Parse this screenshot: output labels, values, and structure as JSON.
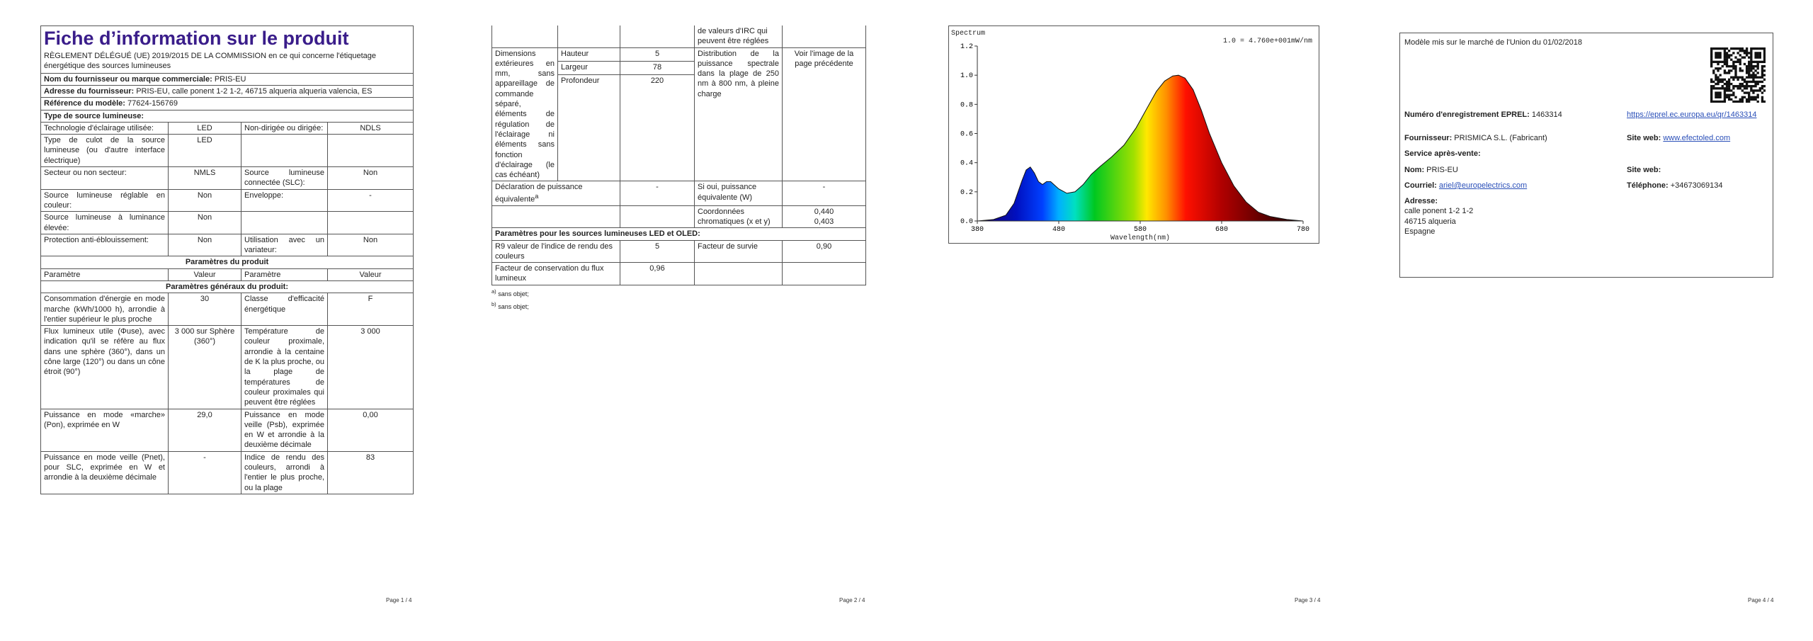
{
  "page1": {
    "title": "Fiche d’information sur le produit",
    "subtitle": "RÈGLEMENT DÉLÉGUÉ (UE) 2019/2015 DE LA COMMISSION en ce qui concerne l'étiquetage énergétique des sources lumineuses",
    "info": [
      [
        "Nom du fournisseur ou marque commerciale:",
        "PRIS-EU"
      ],
      [
        "Adresse du fournisseur:",
        "PRIS-EU, calle ponent 1-2 1-2, 46715 alqueria alqueria valencia, ES"
      ],
      [
        "Référence du modèle:",
        "77624-156769"
      ],
      [
        "Type de source lumineuse:"
      ]
    ],
    "rows": [
      [
        "Technologie d'éclairage utilisée:",
        "LED",
        "Non-dirigée ou dirigée:",
        "NDLS"
      ],
      [
        "Type de culot de la source lumineuse (ou d'autre interface électrique)",
        "LED",
        null,
        null
      ],
      [
        "Secteur ou non secteur:",
        "NMLS",
        "Source lumineuse connectée (SLC):",
        "Non"
      ],
      [
        "Source lumineuse réglable en couleur:",
        "Non",
        "Enveloppe:",
        "-"
      ],
      [
        "Source lumineuse à luminance élevée:",
        "Non",
        null,
        null
      ],
      [
        "Protection anti-éblouissement:",
        "Non",
        "Utilisation avec un variateur:",
        "Non"
      ],
      [
        "Paramètres du produit"
      ],
      [
        "Paramètre",
        "Valeur",
        "Paramètre",
        "Valeur"
      ],
      [
        "Paramètres généraux du produit:"
      ],
      [
        "Consommation d'énergie en mode marche (kWh/1000 h), arrondie à l'entier supérieur le plus proche",
        "30",
        "Classe d'efficacité énergétique",
        "F"
      ],
      [
        "Flux lumineux utile (Φuse), avec indication qu'il se réfère au flux dans une sphère (360°), dans un cône large (120°) ou dans un cône étroit (90°)",
        "3 000 sur Sphère (360°)",
        "Température de couleur proximale, arrondie à la centaine de K la plus proche, ou la plage de températures de couleur proximales qui peuvent être réglées",
        "3 000"
      ],
      [
        "Puissance en mode «marche» (Pon), exprimée en W",
        "29,0",
        "Puissance en mode veille (Psb), exprimée en W et arrondie à la deuxième décimale",
        "0,00"
      ],
      [
        "Puissance en mode veille (Pnet), pour SLC, exprimée en W et arrondie à la deuxième décimale",
        "-",
        "Indice de rendu des couleurs, arrondi à l'entier le plus proche, ou la plage",
        "83"
      ]
    ],
    "footer": "Page 1 / 4"
  },
  "page2": {
    "continuation": "de valeurs d'IRC qui peuvent être réglées",
    "dimensions_label": "Dimensions extérieures en mm, sans appareillage de commande séparé, éléments de régulation de l'éclairage ni éléments sans fonction d'éclairage (le cas échéant)",
    "dimensions": [
      [
        "Hauteur",
        "5"
      ],
      [
        "Largeur",
        "78"
      ],
      [
        "Profondeur",
        "220"
      ]
    ],
    "spectral_label": "Distribution de la puissance spectrale dans la plage de 250 nm à 800 nm, à pleine charge",
    "spectral_value": "Voir l'image de la page précédente",
    "equivalent_label": "Déclaration de puissance équivalente",
    "equivalent_note": "a",
    "equivalent_value": "-",
    "equivalent_power_label": "Si oui, puissance équivalente (W)",
    "equivalent_power_value": "-",
    "chromaticity_label": "Coordonnées chromatiques (x et y)",
    "chromaticity_values": [
      "0,440",
      "0,403"
    ],
    "led_heading": "Paramètres pour les sources lumineuses LED et OLED:",
    "r9_label": "R9 valeur de l'indice de rendu des couleurs",
    "r9_value": "5",
    "survival_label": "Facteur de survie",
    "survival_value": "0,90",
    "maintenance_label": "Facteur de conservation du flux lumineux",
    "maintenance_value": "0,96",
    "footnotes": [
      [
        "a)",
        "sans objet;"
      ],
      [
        "b)",
        "sans objet;"
      ]
    ],
    "footer": "Page 2 / 4"
  },
  "page3": {
    "spectrum": {
      "title": "Spectrum",
      "scale_note": "1.0 = 4.760e+001mW/nm",
      "x_label": "Wavelength(nm)",
      "xlim": [
        380,
        780
      ],
      "ylim": [
        0,
        1.2
      ],
      "xticks": [
        380,
        480,
        580,
        680,
        780
      ],
      "yticks": [
        {
          "value": 0,
          "label": "0.0"
        },
        {
          "value": 0.2,
          "label": "0.2"
        },
        {
          "value": 0.4,
          "label": "0.4"
        },
        {
          "value": 0.6,
          "label": "0.6"
        },
        {
          "value": 0.8,
          "label": "0.8"
        },
        {
          "value": 1.0,
          "label": "1.0"
        },
        {
          "value": 1.2,
          "label": "1.2"
        }
      ],
      "x": [
        380,
        400,
        415,
        425,
        435,
        440,
        445,
        450,
        455,
        460,
        465,
        470,
        480,
        490,
        500,
        510,
        520,
        530,
        545,
        560,
        575,
        590,
        600,
        610,
        620,
        627,
        635,
        645,
        655,
        665,
        680,
        695,
        710,
        725,
        740,
        760,
        780
      ],
      "values": [
        0,
        0.01,
        0.04,
        0.12,
        0.28,
        0.35,
        0.37,
        0.33,
        0.27,
        0.25,
        0.27,
        0.27,
        0.22,
        0.19,
        0.2,
        0.25,
        0.32,
        0.37,
        0.44,
        0.52,
        0.64,
        0.79,
        0.89,
        0.96,
        0.995,
        1.0,
        0.98,
        0.9,
        0.76,
        0.6,
        0.4,
        0.24,
        0.13,
        0.06,
        0.03,
        0.01,
        0
      ]
    },
    "footer": "Page 3 / 4"
  },
  "page4": {
    "market_date": "Modèle mis sur le marché de l'Union du 01/02/2018",
    "eprel_label": "Numéro d'enregistrement EPREL:",
    "eprel_value": "1463314",
    "eprel_link": "https://eprel.ec.europa.eu/qr/1463314",
    "supplier_label": "Fournisseur:",
    "supplier_value": "PRISMICA S.L. (Fabricant)",
    "website_label": "Site web:",
    "website_value": "www.efectoled.com",
    "service_heading": "Service après-vente:",
    "name_label": "Nom:",
    "name_value": "PRIS-EU",
    "service_website_label": "Site web:",
    "email_label": "Courriel:",
    "email_value": "ariel@europelectrics.com",
    "phone_label": "Téléphone:",
    "phone_value": "+34673069134",
    "address_label": "Adresse:",
    "address_lines": [
      "calle ponent 1-2 1-2",
      "46715 alqueria",
      "Espagne"
    ],
    "footer": "Page 4 / 4"
  }
}
